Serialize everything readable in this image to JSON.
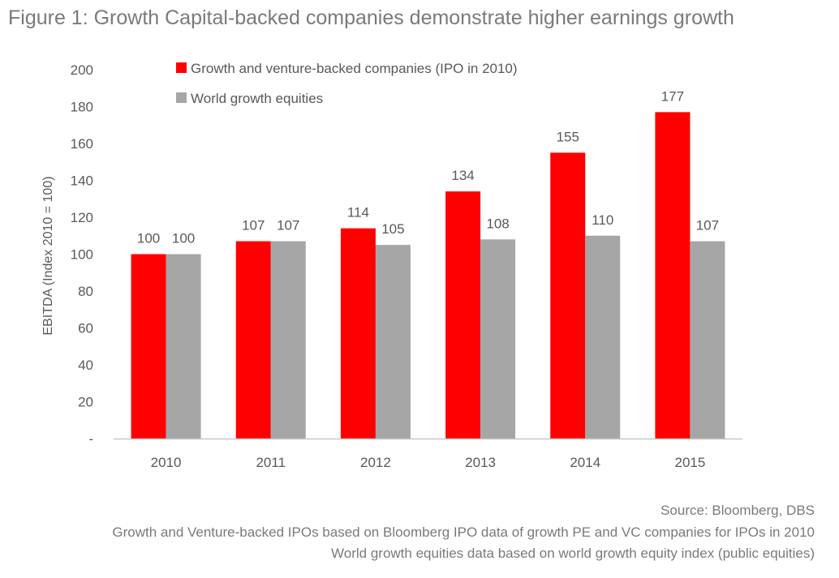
{
  "figure_title": "Figure 1: Growth Capital-backed companies demonstrate higher earnings growth",
  "colors": {
    "series_1": "#ff0000",
    "series_2": "#a6a6a6",
    "axis_line": "#c8c8c8",
    "text": "#595959"
  },
  "chart_data": {
    "type": "bar",
    "title": "",
    "xlabel": "",
    "ylabel": "EBITDA (Index 2010 = 100)",
    "ylim": [
      0,
      200
    ],
    "y_ticks": [
      0,
      20,
      40,
      60,
      80,
      100,
      120,
      140,
      160,
      180,
      200
    ],
    "y_tick_labels": [
      "-",
      "20",
      "40",
      "60",
      "80",
      "100",
      "120",
      "140",
      "160",
      "180",
      "200"
    ],
    "categories": [
      "2010",
      "2011",
      "2012",
      "2013",
      "2014",
      "2015"
    ],
    "series": [
      {
        "name": "Growth and venture-backed companies (IPO in 2010)",
        "values": [
          100,
          107,
          114,
          134,
          155,
          177
        ]
      },
      {
        "name": "World growth equities",
        "values": [
          100,
          107,
          105,
          108,
          110,
          107
        ]
      }
    ],
    "data_labels": true,
    "grid": false,
    "legend_position": "top-left"
  },
  "footnotes": {
    "source": "Source: Bloomberg, DBS",
    "note_1": "Growth and Venture-backed IPOs based on Bloomberg IPO data of growth PE and VC companies for IPOs in 2010",
    "note_2": "World growth equities data based on world growth equity index (public equities)"
  }
}
